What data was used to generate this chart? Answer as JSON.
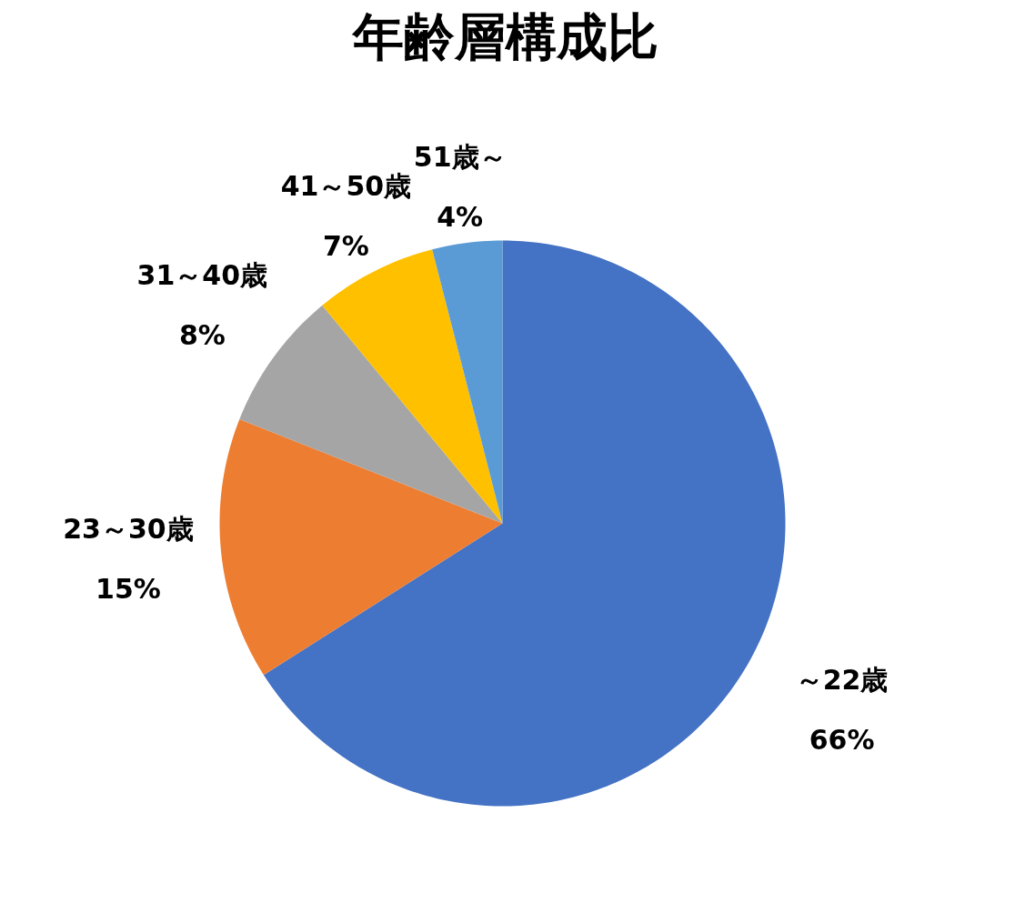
{
  "chart_data": {
    "type": "pie",
    "title": "年齢層構成比",
    "categories": [
      "～22歳",
      "23～30歳",
      "31～40歳",
      "41～50歳",
      "51歳～"
    ],
    "values": [
      66,
      15,
      8,
      7,
      4
    ],
    "colors": [
      "#4472c4",
      "#ed7d31",
      "#a5a5a5",
      "#ffc000",
      "#5b9bd5"
    ],
    "value_labels": [
      "66%",
      "15%",
      "8%",
      "7%",
      "4%"
    ]
  }
}
